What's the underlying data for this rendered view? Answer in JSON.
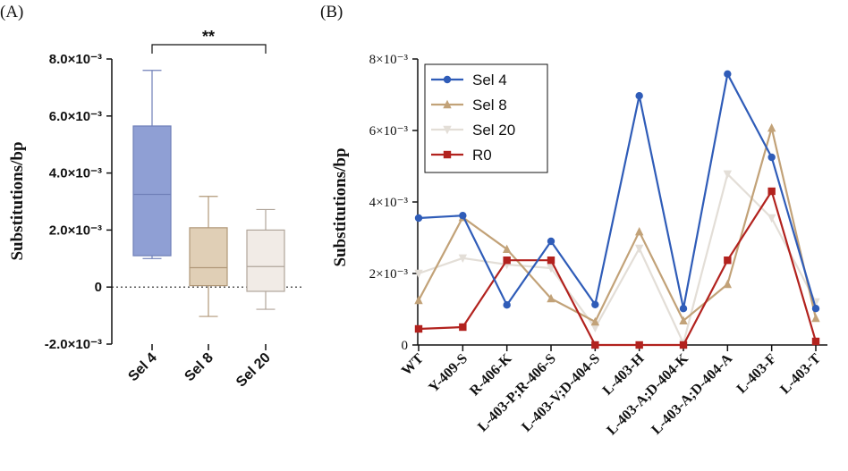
{
  "chart_data": [
    {
      "panel": "(A)",
      "type": "box",
      "ylabel": "Substitutions/bp",
      "ylim": [
        -0.002,
        0.008
      ],
      "yticks": [
        {
          "value": 0.008,
          "label": "8.0×10⁻³"
        },
        {
          "value": 0.006,
          "label": "6.0×10⁻³"
        },
        {
          "value": 0.004,
          "label": "4.0×10⁻³"
        },
        {
          "value": 0.002,
          "label": "2.0×10⁻³"
        },
        {
          "value": 0,
          "label": "0"
        },
        {
          "value": -0.002,
          "label": "-2.0×10⁻³"
        }
      ],
      "zero_line": "dotted",
      "significance": {
        "label": "**",
        "from": "Sel 4",
        "to": "Sel 20"
      },
      "boxes": [
        {
          "category": "Sel 4",
          "min": 0.001,
          "q1": 0.0011,
          "median": 0.00325,
          "q3": 0.00565,
          "max": 0.0076,
          "color": "#8f9fd4",
          "stroke": "#6f7fb8"
        },
        {
          "category": "Sel 8",
          "min": -0.00103,
          "q1": 5e-05,
          "median": 0.00068,
          "q3": 0.00208,
          "max": 0.00318,
          "color": "#e0cfb6",
          "stroke": "#b09878"
        },
        {
          "category": "Sel 20",
          "min": -0.00078,
          "q1": -0.00015,
          "median": 0.00072,
          "q3": 0.002,
          "max": 0.00272,
          "color": "#f1ebe6",
          "stroke": "#b0a59a"
        }
      ]
    },
    {
      "panel": "(B)",
      "type": "line",
      "ylabel": "Substitutions/bp",
      "ylim": [
        0,
        0.008
      ],
      "yticks": [
        {
          "value": 0,
          "label": "0"
        },
        {
          "value": 0.002,
          "label": "2×10⁻³"
        },
        {
          "value": 0.004,
          "label": "4×10⁻³"
        },
        {
          "value": 0.006,
          "label": "6×10⁻³"
        },
        {
          "value": 0.008,
          "label": "8×10⁻³"
        }
      ],
      "legend": "top-left",
      "categories": [
        "WT",
        "Y-409-S",
        "R-406-K",
        "L-403-P;R-406-S",
        "L-403-V;D-404-S",
        "L-403-H",
        "L-403-A;D-404-K",
        "L-403-A;D-404-A",
        "L-403-F",
        "L-403-T"
      ],
      "series": [
        {
          "name": "Sel 4",
          "marker": "circle",
          "color": "#2f5cb8",
          "values": [
            0.00355,
            0.00362,
            0.00112,
            0.0029,
            0.00113,
            0.00697,
            0.00102,
            0.00758,
            0.00525,
            0.00102
          ]
        },
        {
          "name": "Sel 8",
          "marker": "triangle-up",
          "color": "#c2a278",
          "values": [
            0.00125,
            0.00357,
            0.00268,
            0.0013,
            0.00065,
            0.00317,
            0.00068,
            0.0017,
            0.00607,
            0.00075
          ]
        },
        {
          "name": "Sel 20",
          "marker": "triangle-down",
          "color": "#e3ded7",
          "values": [
            0.002,
            0.00243,
            0.00225,
            0.00215,
            0.00048,
            0.0027,
            5e-05,
            0.00478,
            0.00355,
            0.0012
          ]
        },
        {
          "name": "R0",
          "marker": "square",
          "color": "#b2221e",
          "values": [
            0.00045,
            0.0005,
            0.00237,
            0.00237,
            0.0,
            0.0,
            0.0,
            0.00237,
            0.0043,
            0.0001
          ]
        }
      ]
    }
  ]
}
